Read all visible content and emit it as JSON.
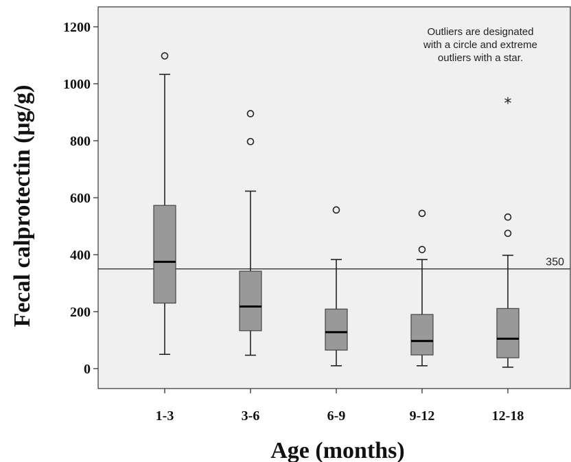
{
  "chart_data": {
    "type": "box",
    "categories": [
      "1-3",
      "3-6",
      "6-9",
      "9-12",
      "12-18"
    ],
    "series": [
      {
        "category": "1-3",
        "whisker_low": 50,
        "q1": 230,
        "median": 375,
        "q3": 573,
        "whisker_high": 1033,
        "outliers": [
          1098
        ],
        "extremes": []
      },
      {
        "category": "3-6",
        "whisker_low": 47,
        "q1": 133,
        "median": 218,
        "q3": 342,
        "whisker_high": 623,
        "outliers": [
          797,
          895
        ],
        "extremes": []
      },
      {
        "category": "6-9",
        "whisker_low": 10,
        "q1": 65,
        "median": 128,
        "q3": 209,
        "whisker_high": 383,
        "outliers": [
          557
        ],
        "extremes": []
      },
      {
        "category": "9-12",
        "whisker_low": 10,
        "q1": 48,
        "median": 97,
        "q3": 190,
        "whisker_high": 383,
        "outliers": [
          418,
          545
        ],
        "extremes": []
      },
      {
        "category": "12-18",
        "whisker_low": 5,
        "q1": 38,
        "median": 105,
        "q3": 211,
        "whisker_high": 398,
        "outliers": [
          475,
          532
        ],
        "extremes": [
          935
        ]
      }
    ],
    "yticks": [
      0,
      200,
      400,
      600,
      800,
      1000,
      1200
    ],
    "ylim": [
      -70,
      1270
    ],
    "xlabel": "Age (months)",
    "ylabel": "Fecal calprotectin (μg/g)",
    "reference_line": {
      "value": 350,
      "label": "350"
    },
    "annotation": [
      "Outliers are designated",
      "with a circle and extreme",
      "outliers with a star."
    ],
    "grid": false,
    "colors": {
      "plot_background": "#f0f0f0",
      "box_fill": "#999999",
      "box_stroke": "#444444",
      "median": "#000000",
      "whisker": "#222222",
      "refline": "#333333",
      "frame": "#333333"
    }
  }
}
